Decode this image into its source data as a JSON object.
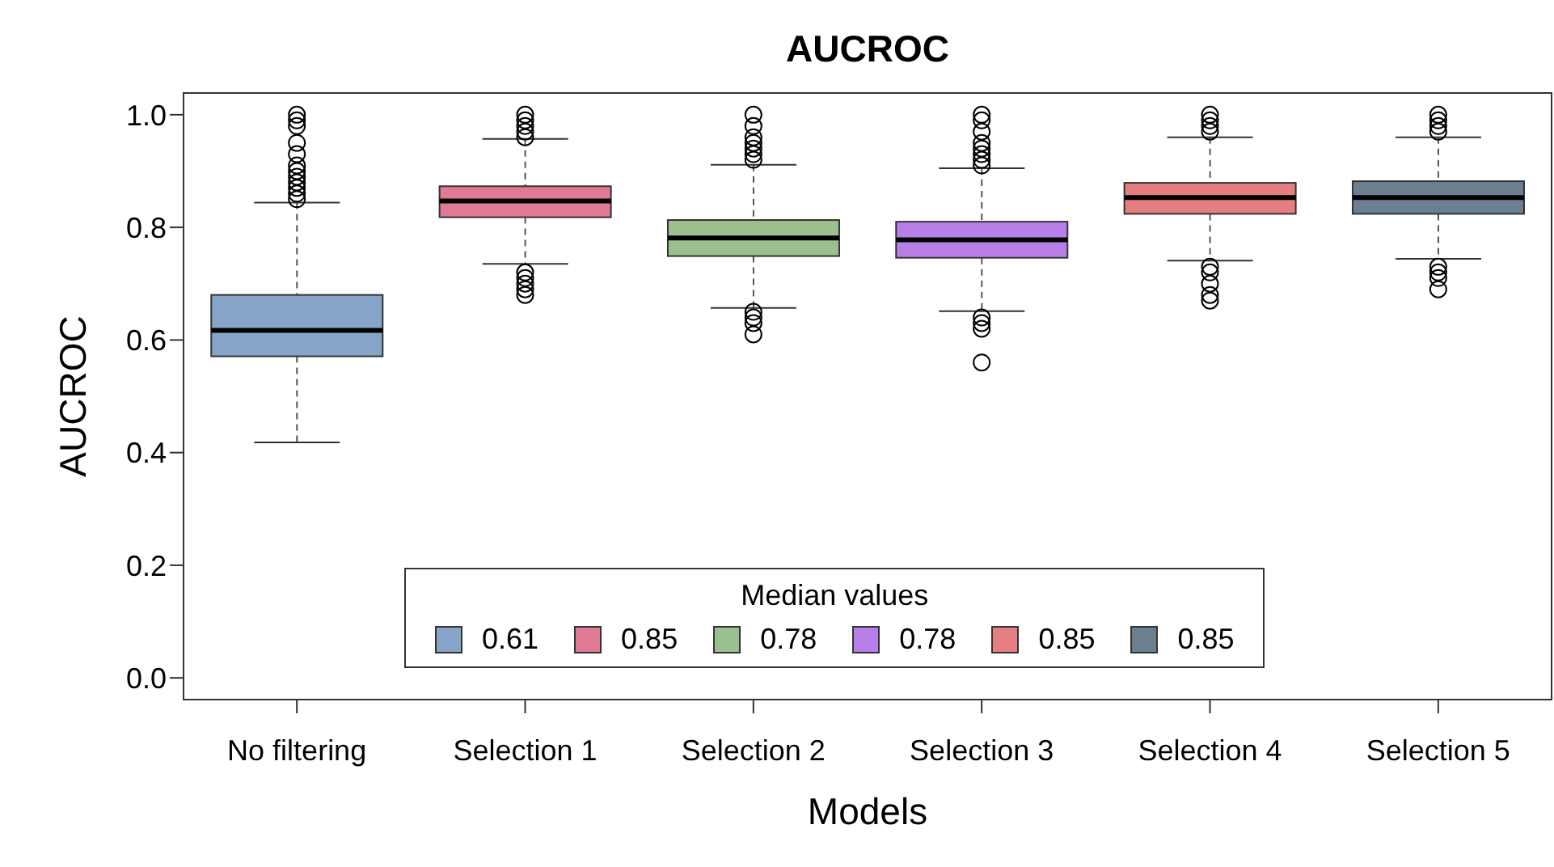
{
  "chart_data": {
    "type": "box",
    "title": "AUCROC",
    "xlabel": "Models",
    "ylabel": "AUCROC",
    "legend_title": "Median values",
    "legend": "bottom",
    "categories": [
      "No filtering",
      "Selection 1",
      "Selection 2",
      "Selection 3",
      "Selection 4",
      "Selection 5"
    ],
    "ylim": [
      -0.04,
      1.04
    ],
    "yticks": [
      {
        "value": 0,
        "label": "0.0"
      },
      {
        "value": 0.2,
        "label": "0.2"
      },
      {
        "value": 0.4,
        "label": "0.4"
      },
      {
        "value": 0.6,
        "label": "0.6"
      },
      {
        "value": 0.8,
        "label": "0.8"
      },
      {
        "value": 1,
        "label": "1.0"
      }
    ],
    "series": [
      {
        "name": "0.61",
        "color": "#87a5c8",
        "boxes": [
          {
            "low": 0.418,
            "q1": 0.571,
            "median": 0.617,
            "q3": 0.68,
            "high": 0.844,
            "outliers": [
              0.85,
              0.86,
              0.87,
              0.88,
              0.89,
              0.9,
              0.91,
              0.93,
              0.95,
              0.98,
              0.99,
              1.0
            ]
          },
          null,
          null,
          null,
          null,
          null
        ]
      },
      {
        "name": "0.85",
        "color": "#e07a95",
        "boxes": [
          null,
          {
            "low": 0.735,
            "q1": 0.818,
            "median": 0.847,
            "q3": 0.873,
            "high": 0.957,
            "outliers": [
              0.96,
              0.97,
              0.98,
              0.99,
              1.0,
              0.72,
              0.71,
              0.7,
              0.69,
              0.68
            ]
          },
          null,
          null,
          null,
          null
        ]
      },
      {
        "name": "0.78",
        "color": "#9cbf8f",
        "boxes": [
          null,
          null,
          {
            "low": 0.657,
            "q1": 0.749,
            "median": 0.781,
            "q3": 0.813,
            "high": 0.911,
            "outliers": [
              0.92,
              0.93,
              0.94,
              0.95,
              0.96,
              0.98,
              1.0,
              0.65,
              0.64,
              0.63,
              0.61
            ]
          },
          null,
          null,
          null
        ]
      },
      {
        "name": "0.78",
        "color": "#b87fe8",
        "boxes": [
          null,
          null,
          null,
          {
            "low": 0.651,
            "q1": 0.746,
            "median": 0.778,
            "q3": 0.81,
            "high": 0.905,
            "outliers": [
              0.91,
              0.92,
              0.93,
              0.94,
              0.95,
              0.97,
              0.99,
              1.0,
              0.64,
              0.63,
              0.62,
              0.56
            ]
          },
          null,
          null
        ]
      },
      {
        "name": "0.85",
        "color": "#e57e80",
        "boxes": [
          null,
          null,
          null,
          null,
          {
            "low": 0.741,
            "q1": 0.824,
            "median": 0.853,
            "q3": 0.879,
            "high": 0.96,
            "outliers": [
              0.97,
              0.98,
              0.99,
              1.0,
              0.73,
              0.72,
              0.7,
              0.68,
              0.67
            ]
          },
          null
        ]
      },
      {
        "name": "0.85",
        "color": "#6c7f91",
        "boxes": [
          null,
          null,
          null,
          null,
          null,
          {
            "low": 0.744,
            "q1": 0.824,
            "median": 0.853,
            "q3": 0.882,
            "high": 0.96,
            "outliers": [
              0.97,
              0.98,
              0.99,
              1.0,
              0.73,
              0.72,
              0.71,
              0.69
            ]
          }
        ]
      }
    ]
  }
}
